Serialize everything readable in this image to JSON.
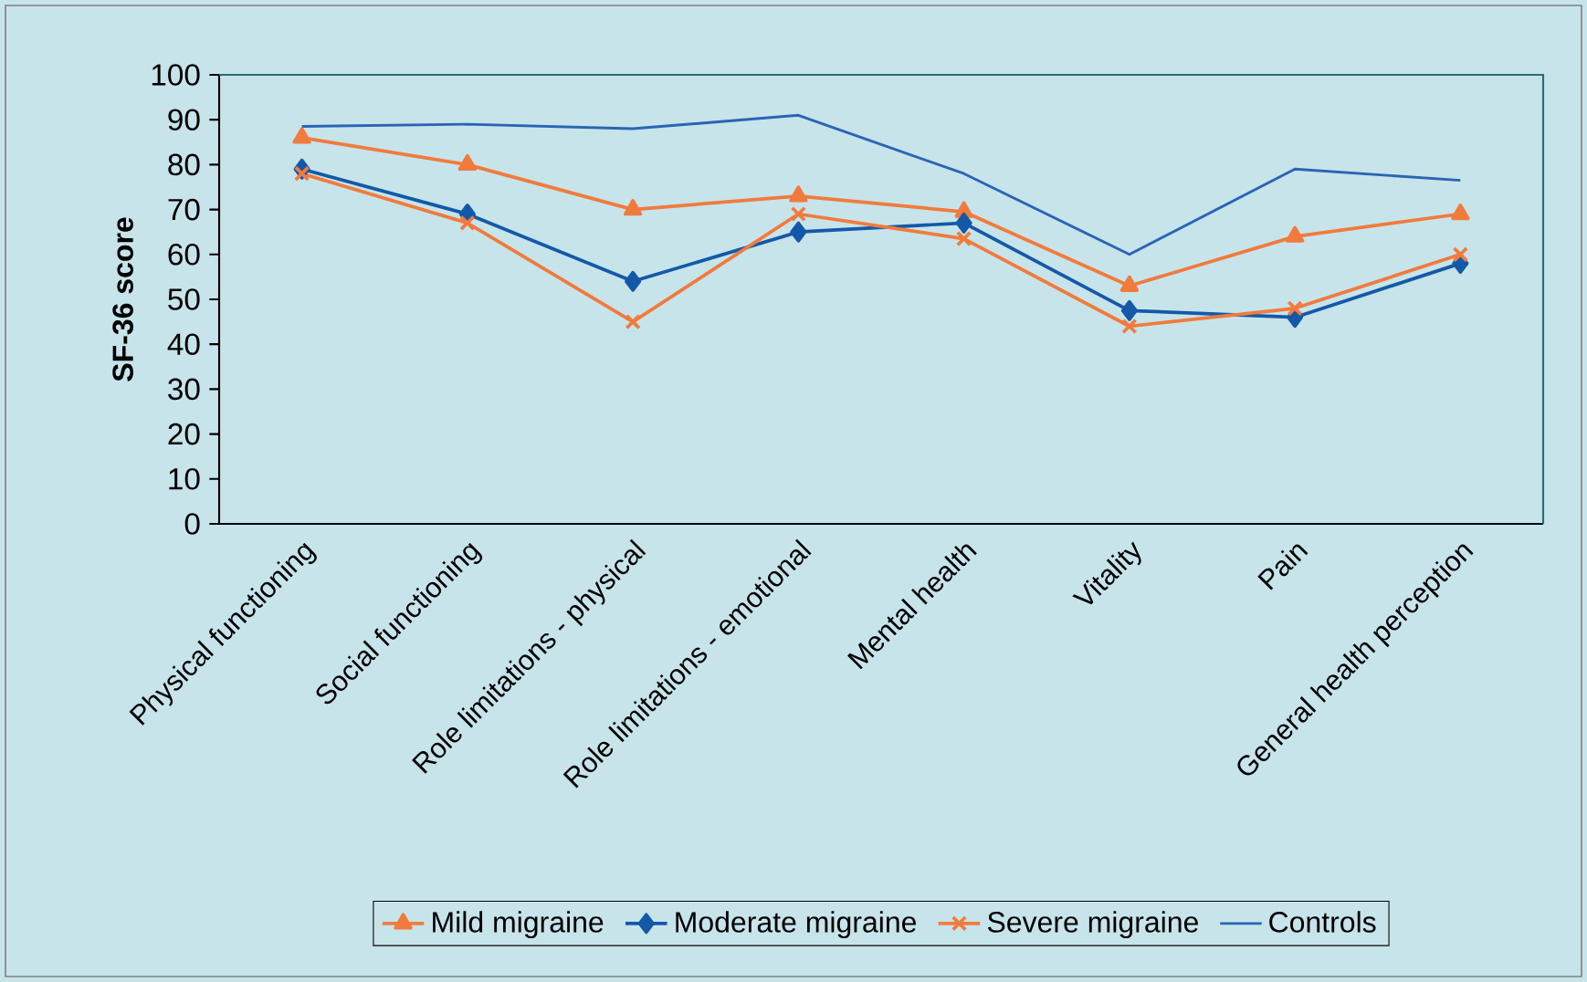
{
  "chart_data": {
    "type": "line",
    "ylabel": "SF-36 score",
    "categories": [
      "Physical functioning",
      "Social functioning",
      "Role limitations - physical",
      "Role limitations - emotional",
      "Mental health",
      "Vitality",
      "Pain",
      "General health perception"
    ],
    "series": [
      {
        "name": "Mild migraine",
        "color": "#f07b3c",
        "marker": "triangle",
        "values": [
          86,
          80,
          70,
          73,
          69.5,
          53,
          64,
          69
        ]
      },
      {
        "name": "Moderate migraine",
        "color": "#1459a8",
        "marker": "diamond",
        "values": [
          79,
          69,
          54,
          65,
          67,
          47.5,
          46,
          58
        ]
      },
      {
        "name": "Severe migraine",
        "color": "#f07b3c",
        "marker": "cross",
        "values": [
          78,
          67,
          45,
          69,
          63.5,
          44,
          48,
          60
        ]
      },
      {
        "name": "Controls",
        "color": "#2a64b4",
        "marker": "none",
        "values": [
          88.5,
          89,
          88,
          91,
          78,
          60,
          79,
          76.5
        ]
      }
    ],
    "ylim": [
      0,
      100
    ],
    "yticks": [
      0,
      10,
      20,
      30,
      40,
      50,
      60,
      70,
      80,
      90,
      100
    ],
    "grid": false,
    "legend": "bottom"
  }
}
